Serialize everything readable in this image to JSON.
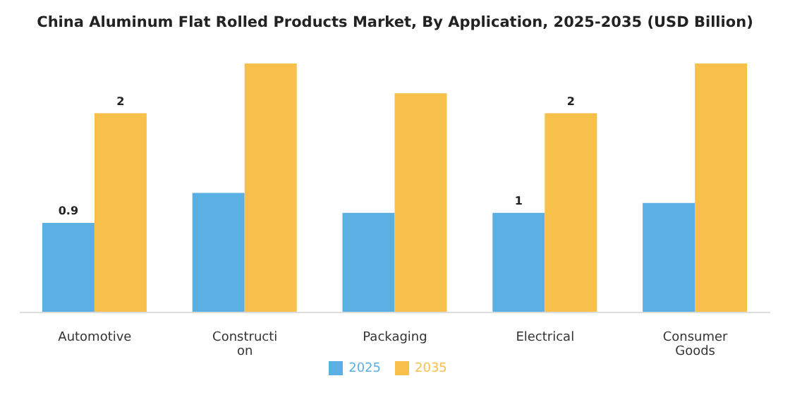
{
  "chart_data": {
    "type": "bar",
    "title": "China Aluminum Flat Rolled Products Market, By Application, 2025-2035 (USD Billion)",
    "categories": [
      "Automotive",
      "Construction",
      "Packaging",
      "Electrical",
      "Consumer Goods"
    ],
    "series": [
      {
        "name": "2025",
        "color": "#5aafe3",
        "values": [
          0.9,
          1.2,
          1.0,
          1,
          1.1
        ],
        "value_labels": [
          "0.9",
          null,
          null,
          "1",
          null
        ]
      },
      {
        "name": "2035",
        "color": "#f7c04a",
        "values": [
          2,
          2.5,
          2.2,
          2,
          2.5
        ],
        "value_labels": [
          "2",
          null,
          null,
          "2",
          null
        ]
      }
    ],
    "legend": "bottom",
    "grid": false
  }
}
